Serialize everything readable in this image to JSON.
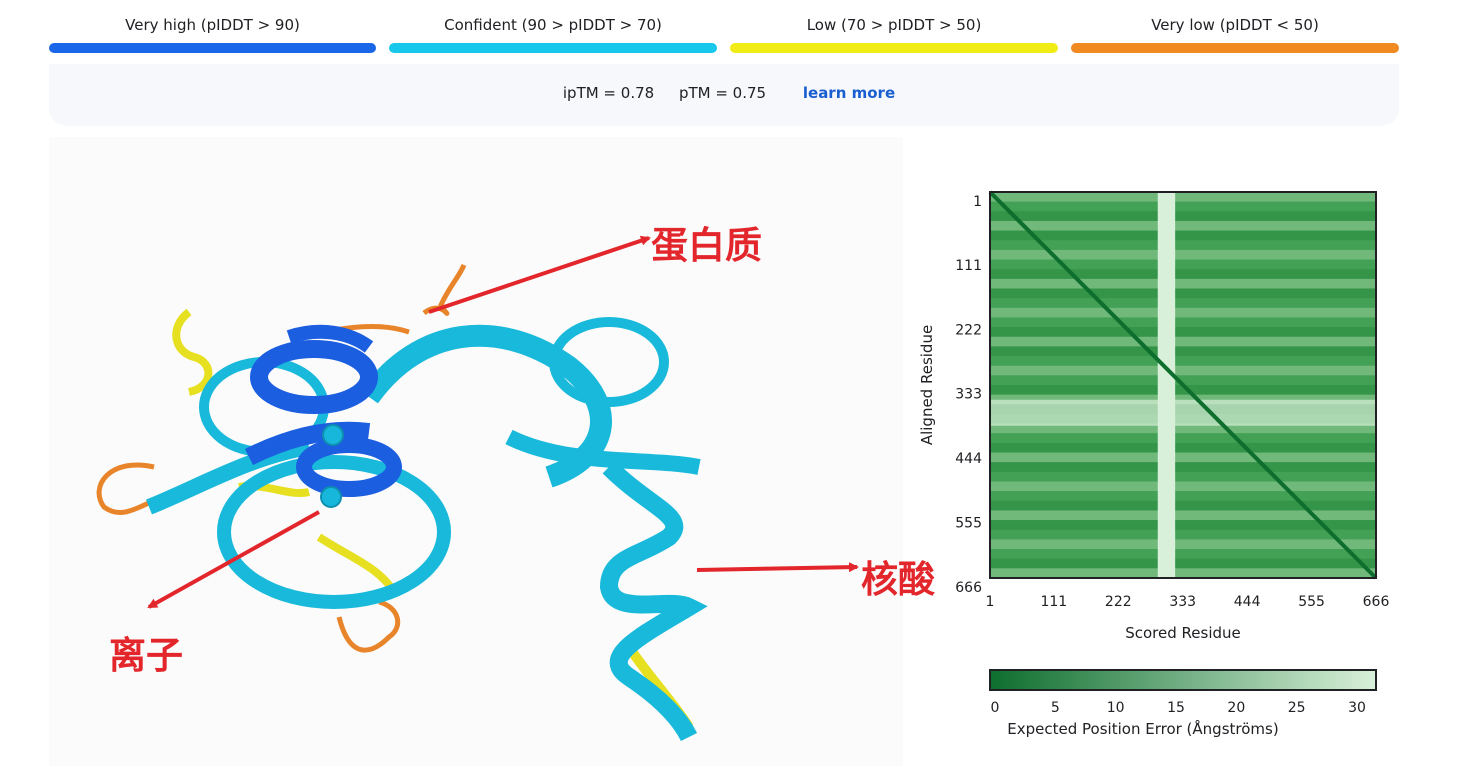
{
  "legend": {
    "items": [
      {
        "label": "Very high (pIDDT > 90)",
        "color": "#1a66e8"
      },
      {
        "label": "Confident (90 > pIDDT > 70)",
        "color": "#17c8ea"
      },
      {
        "label": "Low (70 > pIDDT > 50)",
        "color": "#f1ec16"
      },
      {
        "label": "Very low (pIDDT < 50)",
        "color": "#f08a21"
      }
    ]
  },
  "scores": {
    "iptm": "ipTM = 0.78",
    "ptm": "pTM = 0.75",
    "learn_more": "learn more"
  },
  "viewer": {
    "annotations": {
      "protein": "蛋白质",
      "nucleic_acid": "核酸",
      "ion": "离子"
    },
    "annotation_color": "#e3262b"
  },
  "chart_data": {
    "type": "heatmap",
    "title": "",
    "xlabel": "Scored Residue",
    "ylabel": "Aligned Residue",
    "x_ticks": [
      "1",
      "111",
      "222",
      "333",
      "444",
      "555",
      "666"
    ],
    "y_ticks": [
      "1",
      "111",
      "222",
      "333",
      "444",
      "555",
      "666"
    ],
    "range": [
      1,
      666
    ],
    "colorbar": {
      "label": "Expected Position Error (Ångströms)",
      "ticks": [
        "0",
        "5",
        "10",
        "15",
        "20",
        "25",
        "30"
      ],
      "min": 0,
      "max": 30,
      "colors": [
        "#0d6e2e",
        "#d8f0d9"
      ]
    },
    "low_confidence_band": [
      290,
      320
    ]
  }
}
